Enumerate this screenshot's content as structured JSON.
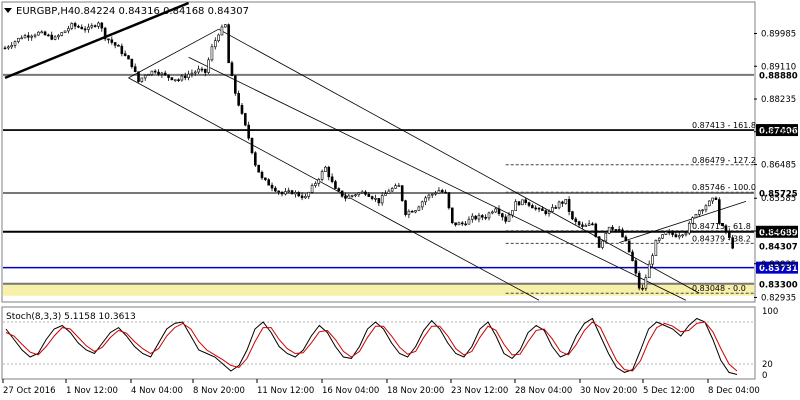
{
  "header": {
    "title": "EURGBP,H4",
    "ohlc": "0.84224 0.84316 0.84168 0.84307"
  },
  "colors": {
    "background": "#ffffff",
    "candle": "#000000",
    "grid_hline": "#000000",
    "support_blue": "#0000c8",
    "zone_fill": "#f7f0a8",
    "price_tag_bg": "#000000",
    "price_tag_blue": "#0000c8",
    "stoch_main": "#000000",
    "stoch_signal": "#d00000"
  },
  "chart_data": [
    {
      "type": "candlestick",
      "symbol": "EURGBP",
      "timeframe": "H4",
      "ylim": [
        0.8284,
        0.908
      ],
      "y_ticks": [
        "0.89985",
        "0.89110",
        "0.88235",
        "0.87360",
        "0.86485",
        "0.85585",
        "0.84710",
        "0.83835",
        "0.82935"
      ],
      "x_ticks": [
        "27 Oct 2016",
        "1 Nov 12:00",
        "4 Nov 04:00",
        "8 Nov 20:00",
        "11 Nov 12:00",
        "16 Nov 04:00",
        "18 Nov 20:00",
        "23 Nov 12:00",
        "28 Nov 04:00",
        "30 Nov 20:00",
        "5 Dec 12:00",
        "8 Dec 04:00"
      ],
      "close_path": [
        [
          0,
          0.896
        ],
        [
          5,
          0.899
        ],
        [
          10,
          0.9
        ],
        [
          15,
          0.8985
        ],
        [
          20,
          0.902
        ],
        [
          25,
          0.901
        ],
        [
          28,
          0.903
        ],
        [
          30,
          0.899
        ],
        [
          34,
          0.896
        ],
        [
          38,
          0.8915
        ],
        [
          40,
          0.887
        ],
        [
          42,
          0.889
        ],
        [
          45,
          0.89
        ],
        [
          48,
          0.8885
        ],
        [
          52,
          0.8875
        ],
        [
          55,
          0.889
        ],
        [
          58,
          0.89
        ],
        [
          60,
          0.8895
        ],
        [
          62,
          0.896
        ],
        [
          64,
          0.9
        ],
        [
          66,
          0.902
        ],
        [
          67,
          0.892
        ],
        [
          69,
          0.884
        ],
        [
          71,
          0.878
        ],
        [
          73,
          0.872
        ],
        [
          75,
          0.865
        ],
        [
          77,
          0.861
        ],
        [
          80,
          0.859
        ],
        [
          83,
          0.857
        ],
        [
          86,
          0.8575
        ],
        [
          90,
          0.856
        ],
        [
          93,
          0.86
        ],
        [
          96,
          0.864
        ],
        [
          99,
          0.858
        ],
        [
          102,
          0.856
        ],
        [
          105,
          0.857
        ],
        [
          108,
          0.8575
        ],
        [
          112,
          0.855
        ],
        [
          115,
          0.858
        ],
        [
          118,
          0.859
        ],
        [
          120,
          0.852
        ],
        [
          123,
          0.853
        ],
        [
          126,
          0.856
        ],
        [
          130,
          0.858
        ],
        [
          132,
          0.857
        ],
        [
          134,
          0.849
        ],
        [
          137,
          0.849
        ],
        [
          140,
          0.8505
        ],
        [
          144,
          0.851
        ],
        [
          147,
          0.8535
        ],
        [
          150,
          0.85
        ],
        [
          153,
          0.8545
        ],
        [
          156,
          0.855
        ],
        [
          160,
          0.8525
        ],
        [
          163,
          0.852
        ],
        [
          166,
          0.8545
        ],
        [
          168,
          0.855
        ],
        [
          170,
          0.85
        ],
        [
          173,
          0.848
        ],
        [
          176,
          0.849
        ],
        [
          178,
          0.843
        ],
        [
          181,
          0.8485
        ],
        [
          184,
          0.847
        ],
        [
          186,
          0.844
        ],
        [
          188,
          0.839
        ],
        [
          190,
          0.832
        ],
        [
          191,
          0.8315
        ],
        [
          193,
          0.838
        ],
        [
          195,
          0.844
        ],
        [
          198,
          0.8465
        ],
        [
          201,
          0.846
        ],
        [
          204,
          0.847
        ],
        [
          207,
          0.852
        ],
        [
          210,
          0.854
        ],
        [
          213,
          0.856
        ],
        [
          214,
          0.849
        ],
        [
          216,
          0.847
        ],
        [
          218,
          0.843
        ]
      ],
      "horizontal_levels": [
        {
          "price": 0.8888,
          "label": "0.88880",
          "style": "gray"
        },
        {
          "price": 0.87406,
          "label": "0.87406",
          "style": "black"
        },
        {
          "price": 0.85725,
          "label": "0.85725",
          "style": "gray"
        },
        {
          "price": 0.84689,
          "label": "0.84689",
          "style": "black"
        },
        {
          "price": 0.83731,
          "label": "0.83731",
          "style": "blue"
        },
        {
          "price": 0.833,
          "label": "0.83300",
          "style": "gray"
        }
      ],
      "current_price": {
        "price": 0.84307,
        "label": "0.84307"
      },
      "fibonacci": [
        {
          "price": 0.87413,
          "label": "0.87413 - 161.8",
          "style": "dashed"
        },
        {
          "price": 0.86479,
          "label": "0.86479 - 127.2",
          "style": "dotted"
        },
        {
          "price": 0.85746,
          "label": "0.85746 - 100.0",
          "style": "dotted"
        },
        {
          "price": 0.84715,
          "label": "0.84715 - 61.8",
          "style": "dotted"
        },
        {
          "price": 0.84379,
          "label": "0.84379 - 38.2",
          "style": "dotted"
        },
        {
          "price": 0.83048,
          "label": "0.83048 - 0.0",
          "style": "dotted"
        }
      ],
      "demand_zone": {
        "from": 0.8298,
        "to": 0.833
      },
      "trendlines": [
        {
          "from": [
            0,
            0.888
          ],
          "to": [
            55,
            0.908
          ],
          "style": "thick"
        },
        {
          "from": [
            37,
            0.888
          ],
          "to": [
            64,
            0.901
          ],
          "style": "thin"
        },
        {
          "from": [
            37,
            0.888
          ],
          "to": [
            160,
            0.8286
          ],
          "style": "thin"
        },
        {
          "from": [
            64,
            0.901
          ],
          "to": [
            208,
            0.8305
          ],
          "style": "thin"
        },
        {
          "from": [
            55,
            0.8935
          ],
          "to": [
            204,
            0.8286
          ],
          "style": "thin"
        },
        {
          "from": [
            184,
            0.844
          ],
          "to": [
            222,
            0.855
          ],
          "style": "thin"
        }
      ]
    },
    {
      "type": "line",
      "title": "Stoch(8,3,3) 5.1158 10.3613",
      "ylim": [
        0,
        100
      ],
      "y_ticks": [
        "100",
        "20",
        "0"
      ],
      "series": [
        {
          "name": "main",
          "values": [
            70,
            55,
            40,
            30,
            35,
            55,
            70,
            75,
            65,
            50,
            40,
            35,
            50,
            65,
            72,
            60,
            45,
            35,
            30,
            50,
            70,
            78,
            80,
            60,
            40,
            35,
            30,
            20,
            10,
            18,
            40,
            70,
            80,
            65,
            45,
            35,
            30,
            40,
            60,
            75,
            65,
            45,
            30,
            28,
            45,
            70,
            80,
            70,
            50,
            35,
            30,
            45,
            68,
            82,
            70,
            50,
            35,
            30,
            45,
            70,
            80,
            60,
            35,
            28,
            40,
            65,
            75,
            68,
            45,
            30,
            35,
            60,
            78,
            85,
            60,
            35,
            15,
            8,
            12,
            40,
            70,
            80,
            75,
            70,
            60,
            75,
            85,
            80,
            55,
            25,
            8,
            5
          ]
        },
        {
          "name": "signal",
          "values": [
            65,
            60,
            48,
            37,
            33,
            45,
            60,
            72,
            70,
            58,
            46,
            38,
            44,
            58,
            68,
            64,
            52,
            42,
            35,
            42,
            60,
            72,
            78,
            70,
            52,
            40,
            33,
            26,
            18,
            15,
            28,
            52,
            72,
            72,
            55,
            42,
            35,
            36,
            50,
            66,
            68,
            55,
            38,
            30,
            38,
            58,
            74,
            74,
            60,
            44,
            34,
            38,
            58,
            74,
            74,
            60,
            42,
            33,
            38,
            58,
            74,
            68,
            48,
            33,
            34,
            52,
            68,
            70,
            56,
            38,
            33,
            48,
            68,
            80,
            72,
            48,
            25,
            12,
            10,
            25,
            52,
            72,
            78,
            74,
            66,
            68,
            78,
            80,
            66,
            42,
            20,
            10
          ]
        }
      ]
    }
  ]
}
